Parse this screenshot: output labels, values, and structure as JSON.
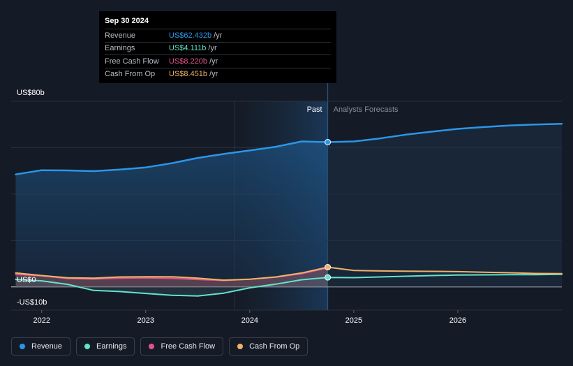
{
  "tooltip": {
    "date": "Sep 30 2024",
    "rows": [
      {
        "name": "Revenue",
        "value": "US$62.432b",
        "unit": "/yr",
        "color": "#2b96e8"
      },
      {
        "name": "Earnings",
        "value": "US$4.111b",
        "unit": "/yr",
        "color": "#62e3cc"
      },
      {
        "name": "Free Cash Flow",
        "value": "US$8.220b",
        "unit": "/yr",
        "color": "#e0548c"
      },
      {
        "name": "Cash From Op",
        "value": "US$8.451b",
        "unit": "/yr",
        "color": "#f0b26a"
      }
    ]
  },
  "chart_data": {
    "type": "line",
    "ylim": [
      -10,
      80
    ],
    "y_labels": [
      {
        "value": 80,
        "text": "US$80b"
      },
      {
        "value": 0,
        "text": "US$0"
      },
      {
        "value": -10,
        "text": "-US$10b"
      }
    ],
    "xlim": [
      2021.7,
      2027.0
    ],
    "x_ticks": [
      {
        "value": 2022,
        "text": "2022"
      },
      {
        "value": 2023,
        "text": "2023"
      },
      {
        "value": 2024,
        "text": "2024"
      },
      {
        "value": 2025,
        "text": "2025"
      },
      {
        "value": 2026,
        "text": "2026"
      }
    ],
    "divider_x": 2024.75,
    "past_label": "Past",
    "forecast_label": "Analysts Forecasts",
    "series": [
      {
        "name": "Revenue",
        "color": "#2b96e8",
        "points": [
          [
            2021.75,
            48.5
          ],
          [
            2022.0,
            50.3
          ],
          [
            2022.25,
            50.2
          ],
          [
            2022.5,
            49.9
          ],
          [
            2022.75,
            50.6
          ],
          [
            2023.0,
            51.5
          ],
          [
            2023.25,
            53.3
          ],
          [
            2023.5,
            55.6
          ],
          [
            2023.75,
            57.3
          ],
          [
            2024.0,
            58.8
          ],
          [
            2024.25,
            60.4
          ],
          [
            2024.5,
            62.7
          ],
          [
            2024.75,
            62.4
          ],
          [
            2025.0,
            62.7
          ],
          [
            2025.25,
            64.0
          ],
          [
            2025.5,
            65.6
          ],
          [
            2025.75,
            66.9
          ],
          [
            2026.0,
            68.1
          ],
          [
            2026.25,
            68.9
          ],
          [
            2026.5,
            69.6
          ],
          [
            2026.75,
            70.0
          ],
          [
            2027.0,
            70.3
          ]
        ]
      },
      {
        "name": "Earnings",
        "color": "#62e3cc",
        "points": [
          [
            2021.75,
            3.2
          ],
          [
            2022.0,
            2.6
          ],
          [
            2022.25,
            1.1
          ],
          [
            2022.5,
            -1.5
          ],
          [
            2022.75,
            -2.0
          ],
          [
            2023.0,
            -2.8
          ],
          [
            2023.25,
            -3.6
          ],
          [
            2023.5,
            -3.9
          ],
          [
            2023.75,
            -2.7
          ],
          [
            2024.0,
            -0.4
          ],
          [
            2024.25,
            1.2
          ],
          [
            2024.5,
            3.1
          ],
          [
            2024.75,
            4.1
          ],
          [
            2025.0,
            4.0
          ],
          [
            2025.25,
            4.3
          ],
          [
            2025.5,
            4.6
          ],
          [
            2025.75,
            4.9
          ],
          [
            2026.0,
            5.1
          ],
          [
            2026.25,
            5.2
          ],
          [
            2026.5,
            5.3
          ],
          [
            2026.75,
            5.3
          ],
          [
            2027.0,
            5.4
          ]
        ]
      },
      {
        "name": "Free Cash Flow",
        "color": "#e0548c",
        "points": [
          [
            2021.75,
            5.4
          ],
          [
            2022.0,
            4.8
          ],
          [
            2022.25,
            3.6
          ],
          [
            2022.5,
            3.4
          ],
          [
            2022.75,
            3.8
          ],
          [
            2023.0,
            3.9
          ],
          [
            2023.25,
            3.7
          ],
          [
            2023.5,
            3.2
          ],
          [
            2023.75,
            2.8
          ],
          [
            2024.0,
            3.3
          ],
          [
            2024.25,
            4.2
          ],
          [
            2024.5,
            5.7
          ],
          [
            2024.75,
            8.2
          ]
        ]
      },
      {
        "name": "Cash From Op",
        "color": "#f0b26a",
        "points": [
          [
            2021.75,
            6.0
          ],
          [
            2022.0,
            4.9
          ],
          [
            2022.25,
            3.9
          ],
          [
            2022.5,
            3.8
          ],
          [
            2022.75,
            4.3
          ],
          [
            2023.0,
            4.4
          ],
          [
            2023.25,
            4.4
          ],
          [
            2023.5,
            3.8
          ],
          [
            2023.75,
            2.9
          ],
          [
            2024.0,
            3.3
          ],
          [
            2024.25,
            4.3
          ],
          [
            2024.5,
            6.0
          ],
          [
            2024.75,
            8.5
          ],
          [
            2025.0,
            7.1
          ],
          [
            2025.25,
            6.9
          ],
          [
            2025.5,
            6.8
          ],
          [
            2025.75,
            6.7
          ],
          [
            2026.0,
            6.6
          ],
          [
            2026.25,
            6.3
          ],
          [
            2026.5,
            6.1
          ],
          [
            2026.75,
            5.8
          ],
          [
            2027.0,
            5.7
          ]
        ]
      }
    ]
  },
  "legend": [
    {
      "label": "Revenue",
      "color": "#2b96e8"
    },
    {
      "label": "Earnings",
      "color": "#62e3cc"
    },
    {
      "label": "Free Cash Flow",
      "color": "#e0548c"
    },
    {
      "label": "Cash From Op",
      "color": "#f0b26a"
    }
  ]
}
